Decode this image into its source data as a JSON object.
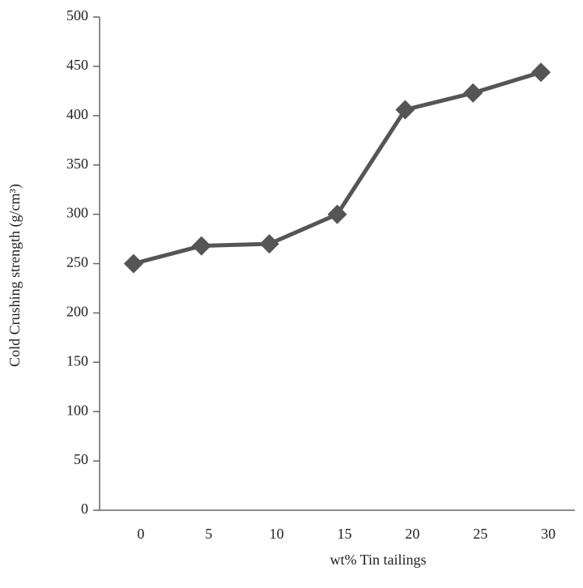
{
  "chart_data": {
    "type": "line",
    "xlabel": "wt% Tin tailings",
    "ylabel": "Cold Crushing strength (g/cm³)",
    "categories": [
      "0",
      "5",
      "10",
      "15",
      "20",
      "25",
      "30"
    ],
    "series": [
      {
        "color": "#555555",
        "values": [
          250,
          268,
          270,
          300,
          406,
          423,
          444
        ]
      }
    ],
    "ylim": [
      0,
      500
    ],
    "yticks": [
      0,
      50,
      100,
      150,
      200,
      250,
      300,
      350,
      400,
      450,
      500
    ]
  }
}
